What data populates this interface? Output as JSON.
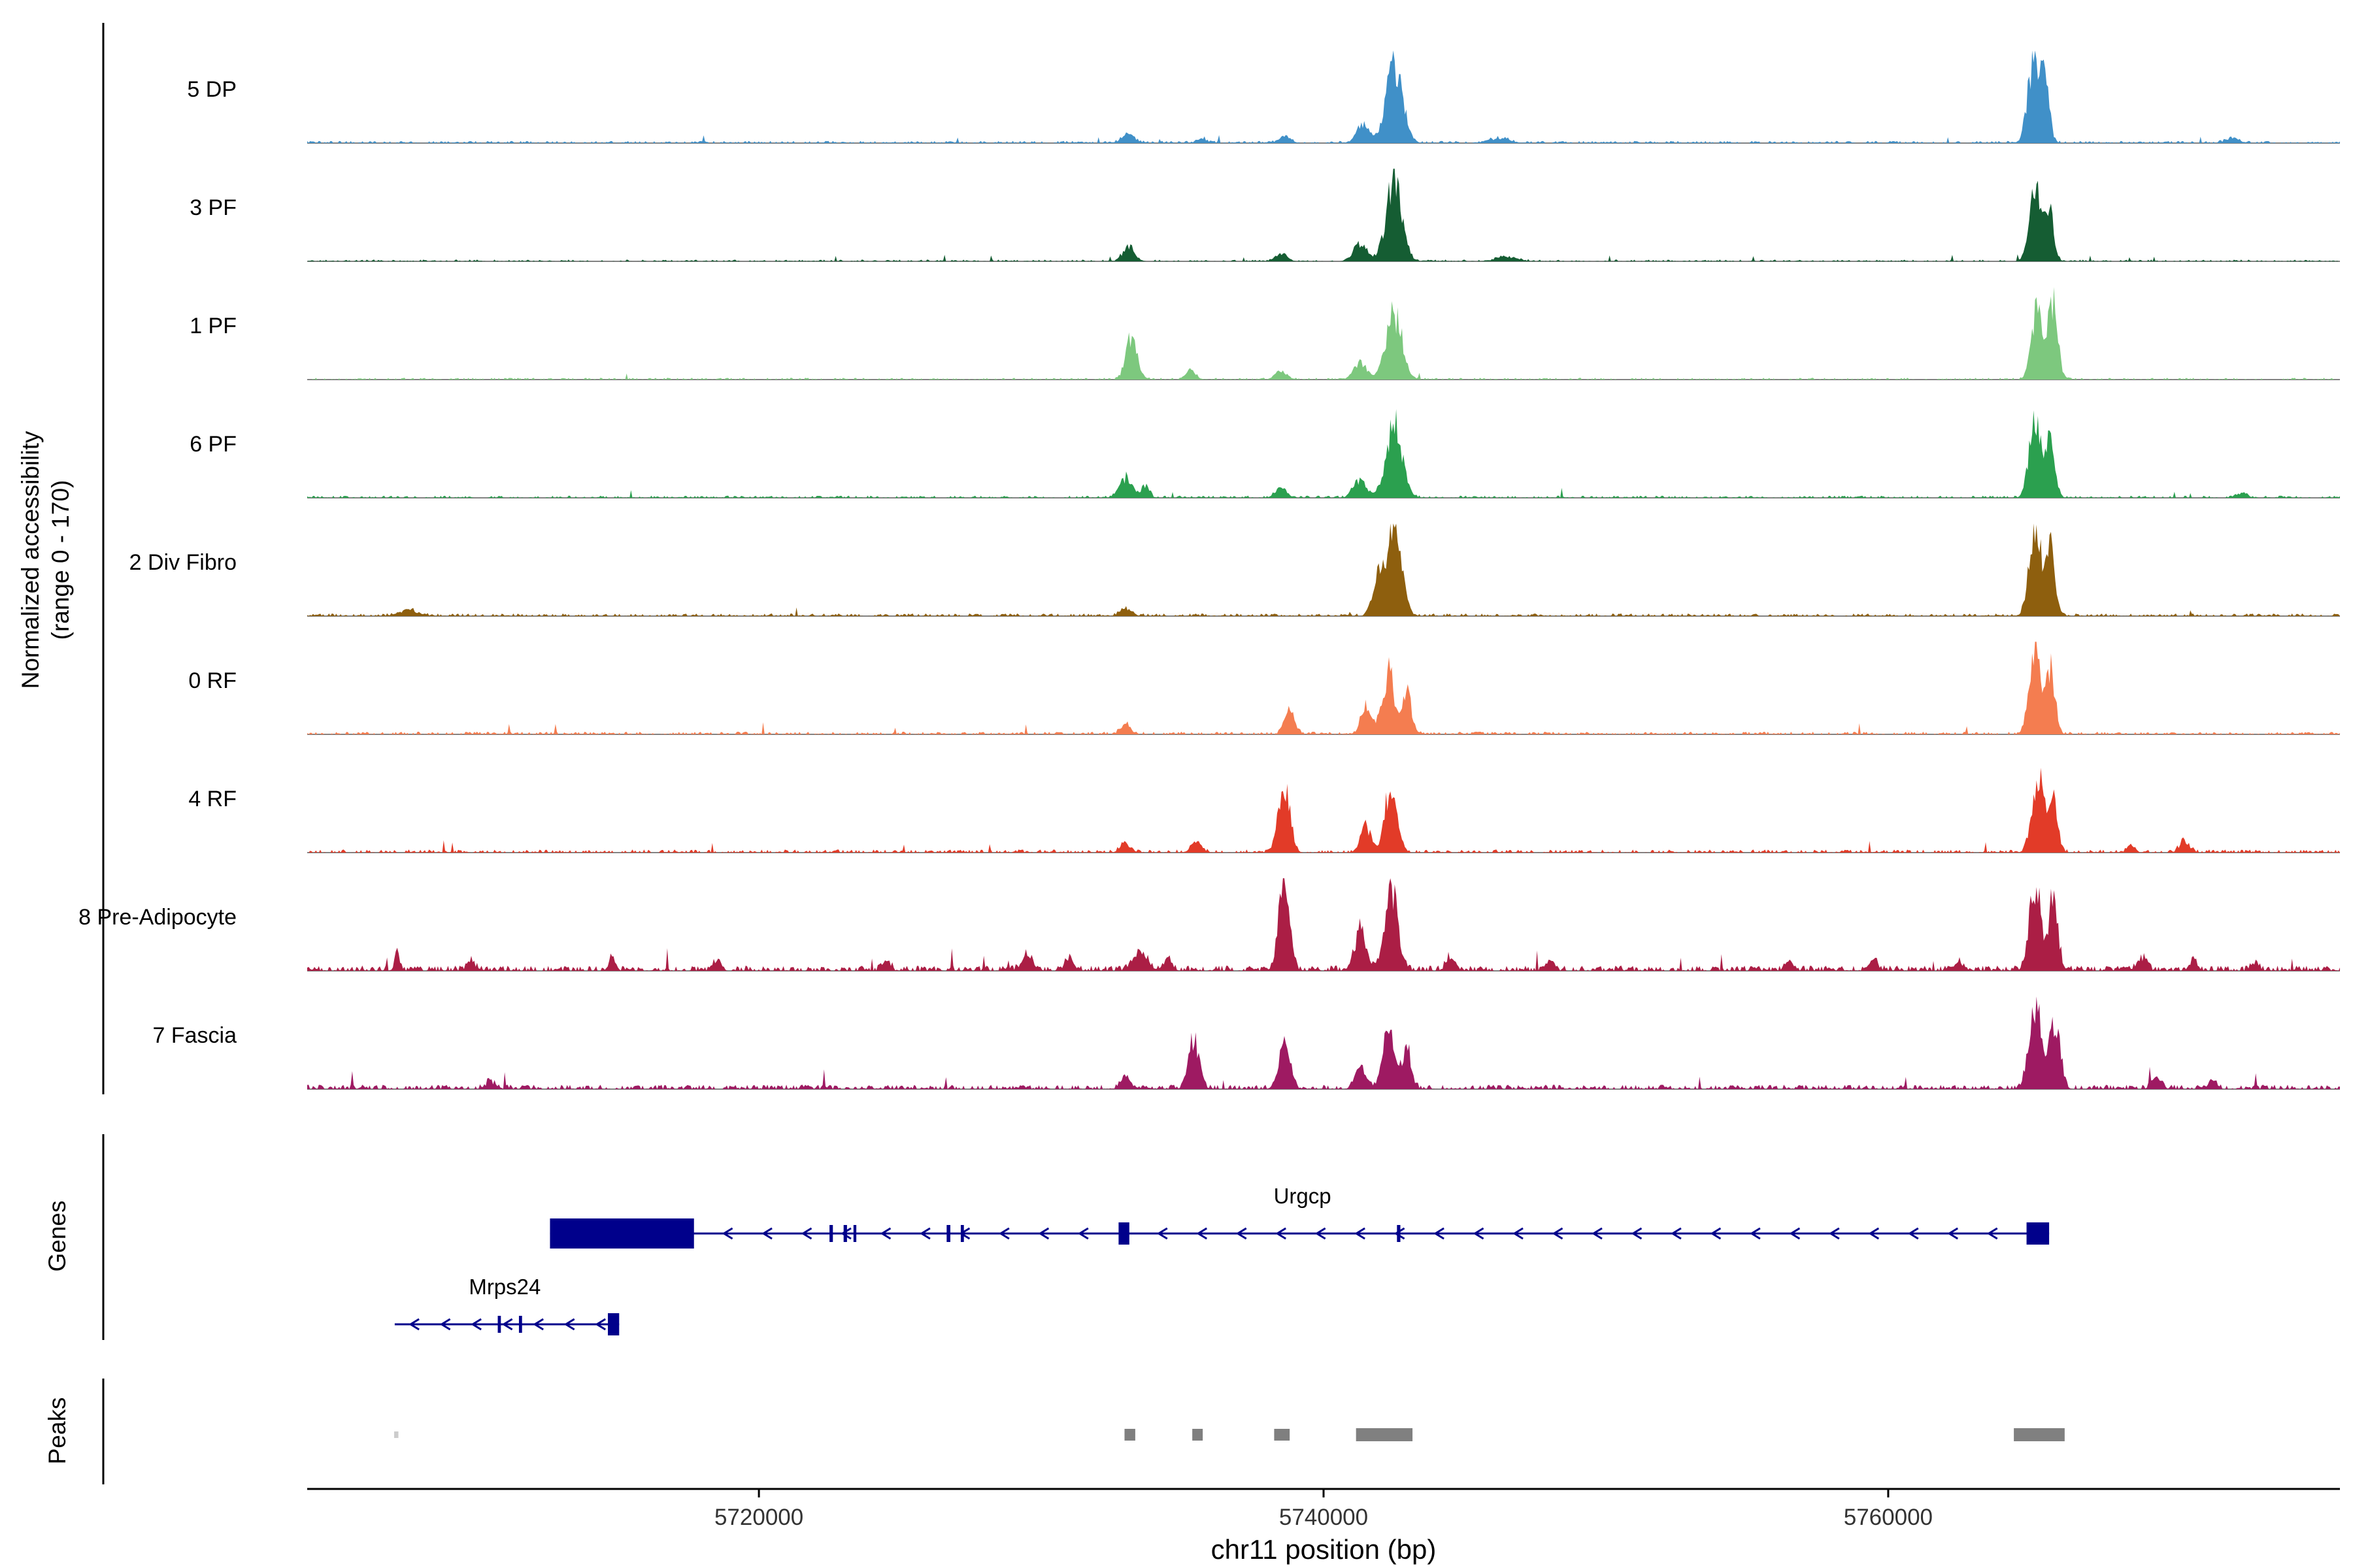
{
  "left_axis": {
    "accessibility_label_line1": "Normalized accessibility",
    "accessibility_label_line2": "(range 0 - 170)",
    "genes_label": "Genes",
    "peaks_label": "Peaks"
  },
  "x_axis": {
    "title": "chr11 position (bp)"
  },
  "chart_data": {
    "type": "area",
    "title": "",
    "xlabel": "chr11 position (bp)",
    "ylabel": "Normalized accessibility (range 0 - 170)",
    "chromosome": "chr11",
    "x_range_bp": [
      5704000,
      5776000
    ],
    "x_ticks": [
      5720000,
      5740000,
      5760000
    ],
    "y_range_per_track": [
      0,
      170
    ],
    "axis_color": "#000000",
    "baseline_color": "#828282",
    "gene_color": "#00008b",
    "tracks": [
      {
        "label": "5 DP",
        "color": "#4090c8",
        "noise_amp": 0.025,
        "noise_density": 0.6,
        "peaks": [
          [
            5742500,
            0.86,
            650
          ],
          [
            5741400,
            0.22,
            500
          ],
          [
            5765150,
            0.93,
            450
          ],
          [
            5765550,
            0.65,
            350
          ],
          [
            5733100,
            0.11,
            450
          ],
          [
            5738600,
            0.07,
            450
          ],
          [
            5735700,
            0.05,
            400
          ],
          [
            5746200,
            0.05,
            800
          ],
          [
            5772200,
            0.06,
            500
          ]
        ]
      },
      {
        "label": "3 PF",
        "color": "#155d33",
        "noise_amp": 0.02,
        "noise_density": 0.5,
        "peaks": [
          [
            5742500,
            0.92,
            620
          ],
          [
            5741300,
            0.2,
            500
          ],
          [
            5733100,
            0.17,
            450
          ],
          [
            5765200,
            0.82,
            450
          ],
          [
            5765700,
            0.58,
            350
          ],
          [
            5738500,
            0.08,
            450
          ],
          [
            5746500,
            0.05,
            800
          ]
        ]
      },
      {
        "label": "1 PF",
        "color": "#7dc87e",
        "noise_amp": 0.02,
        "noise_density": 0.5,
        "peaks": [
          [
            5733200,
            0.45,
            450
          ],
          [
            5735300,
            0.1,
            400
          ],
          [
            5742500,
            0.72,
            620
          ],
          [
            5741300,
            0.2,
            500
          ],
          [
            5765250,
            0.78,
            400
          ],
          [
            5765800,
            0.9,
            400
          ],
          [
            5738500,
            0.1,
            450
          ]
        ]
      },
      {
        "label": "6 PF",
        "color": "#2ba04f",
        "noise_amp": 0.025,
        "noise_density": 0.55,
        "peaks": [
          [
            5733000,
            0.22,
            500
          ],
          [
            5733700,
            0.14,
            300
          ],
          [
            5742500,
            0.82,
            620
          ],
          [
            5741300,
            0.2,
            500
          ],
          [
            5765200,
            0.88,
            450
          ],
          [
            5765750,
            0.7,
            350
          ],
          [
            5738500,
            0.1,
            450
          ],
          [
            5772500,
            0.05,
            450
          ]
        ]
      },
      {
        "label": "2 Div Fibro",
        "color": "#8e5f0e",
        "noise_amp": 0.03,
        "noise_density": 0.6,
        "peaks": [
          [
            5742500,
            0.95,
            580
          ],
          [
            5741900,
            0.4,
            400
          ],
          [
            5765200,
            1.0,
            450
          ],
          [
            5765750,
            0.75,
            350
          ],
          [
            5733000,
            0.08,
            450
          ],
          [
            5707600,
            0.07,
            700
          ]
        ]
      },
      {
        "label": "0 RF",
        "color": "#f47d50",
        "noise_amp": 0.03,
        "noise_density": 0.6,
        "peaks": [
          [
            5738800,
            0.27,
            400
          ],
          [
            5742300,
            0.68,
            480
          ],
          [
            5742950,
            0.48,
            350
          ],
          [
            5741500,
            0.3,
            400
          ],
          [
            5765200,
            0.95,
            450
          ],
          [
            5765750,
            0.72,
            350
          ],
          [
            5733000,
            0.1,
            400
          ]
        ]
      },
      {
        "label": "4 RF",
        "color": "#e23b28",
        "noise_amp": 0.035,
        "noise_density": 0.6,
        "peaks": [
          [
            5738600,
            0.82,
            430
          ],
          [
            5742400,
            0.68,
            480
          ],
          [
            5741500,
            0.3,
            400
          ],
          [
            5765300,
            0.9,
            450
          ],
          [
            5765850,
            0.58,
            350
          ],
          [
            5733000,
            0.1,
            400
          ],
          [
            5735500,
            0.12,
            400
          ],
          [
            5770500,
            0.13,
            380
          ],
          [
            5768600,
            0.08,
            300
          ]
        ]
      },
      {
        "label": "8 Pre-Adipocyte",
        "color": "#ab1e45",
        "noise_amp": 0.06,
        "noise_density": 0.75,
        "peaks": [
          [
            5738600,
            1.0,
            420
          ],
          [
            5742400,
            0.92,
            520
          ],
          [
            5741300,
            0.45,
            430
          ],
          [
            5765200,
            1.0,
            430
          ],
          [
            5765850,
            0.82,
            350
          ],
          [
            5733500,
            0.2,
            550
          ],
          [
            5734500,
            0.14,
            300
          ],
          [
            5707200,
            0.2,
            200
          ],
          [
            5709800,
            0.12,
            300
          ],
          [
            5714800,
            0.15,
            250
          ],
          [
            5718500,
            0.1,
            300
          ],
          [
            5724500,
            0.12,
            300
          ],
          [
            5729500,
            0.2,
            400
          ],
          [
            5731000,
            0.15,
            300
          ],
          [
            5744500,
            0.15,
            350
          ],
          [
            5748000,
            0.1,
            300
          ],
          [
            5756500,
            0.12,
            300
          ],
          [
            5759500,
            0.12,
            300
          ],
          [
            5762500,
            0.1,
            300
          ],
          [
            5769000,
            0.15,
            350
          ],
          [
            5770800,
            0.12,
            300
          ],
          [
            5773000,
            0.1,
            300
          ]
        ]
      },
      {
        "label": "7 Fascia",
        "color": "#9e1a62",
        "noise_amp": 0.05,
        "noise_density": 0.7,
        "peaks": [
          [
            5735400,
            0.55,
            420
          ],
          [
            5738600,
            0.55,
            430
          ],
          [
            5742300,
            0.6,
            480
          ],
          [
            5742950,
            0.45,
            350
          ],
          [
            5741300,
            0.25,
            400
          ],
          [
            5765200,
            1.0,
            480
          ],
          [
            5765900,
            0.78,
            400
          ],
          [
            5733000,
            0.12,
            400
          ],
          [
            5710500,
            0.08,
            400
          ],
          [
            5769500,
            0.12,
            380
          ],
          [
            5771500,
            0.1,
            300
          ]
        ]
      }
    ],
    "genes": [
      {
        "name": "Urgcp",
        "strand": "-",
        "start": 5712600,
        "end": 5765700,
        "label_bp": 5739250,
        "arrow_step_bp": 1400,
        "exons": [
          [
            5712600,
            5717700,
            "tall"
          ],
          [
            5722500,
            5722620,
            "small"
          ],
          [
            5723000,
            5723120,
            "small"
          ],
          [
            5723350,
            5723450,
            "small"
          ],
          [
            5726650,
            5726780,
            "small"
          ],
          [
            5727150,
            5727260,
            "small"
          ],
          [
            5732740,
            5733120,
            "med"
          ],
          [
            5742600,
            5742720,
            "small"
          ],
          [
            5764900,
            5765700,
            "med"
          ]
        ]
      },
      {
        "name": "Mrps24",
        "strand": "-",
        "start": 5707100,
        "end": 5715050,
        "label_bp": 5711000,
        "arrow_step_bp": 1100,
        "exons": [
          [
            5710750,
            5710860,
            "small"
          ],
          [
            5711500,
            5711610,
            "small"
          ],
          [
            5714650,
            5715050,
            "med"
          ]
        ]
      }
    ],
    "peak_regions": [
      {
        "start": 5707080,
        "end": 5707230,
        "color": "#cccccc",
        "height": 10
      },
      {
        "start": 5732950,
        "end": 5733330,
        "color": "#7f7f7f",
        "height": 18
      },
      {
        "start": 5735350,
        "end": 5735720,
        "color": "#7f7f7f",
        "height": 18
      },
      {
        "start": 5738250,
        "end": 5738800,
        "color": "#7f7f7f",
        "height": 18
      },
      {
        "start": 5741150,
        "end": 5743150,
        "color": "#808080",
        "height": 20
      },
      {
        "start": 5764450,
        "end": 5766250,
        "color": "#808080",
        "height": 20
      }
    ]
  }
}
